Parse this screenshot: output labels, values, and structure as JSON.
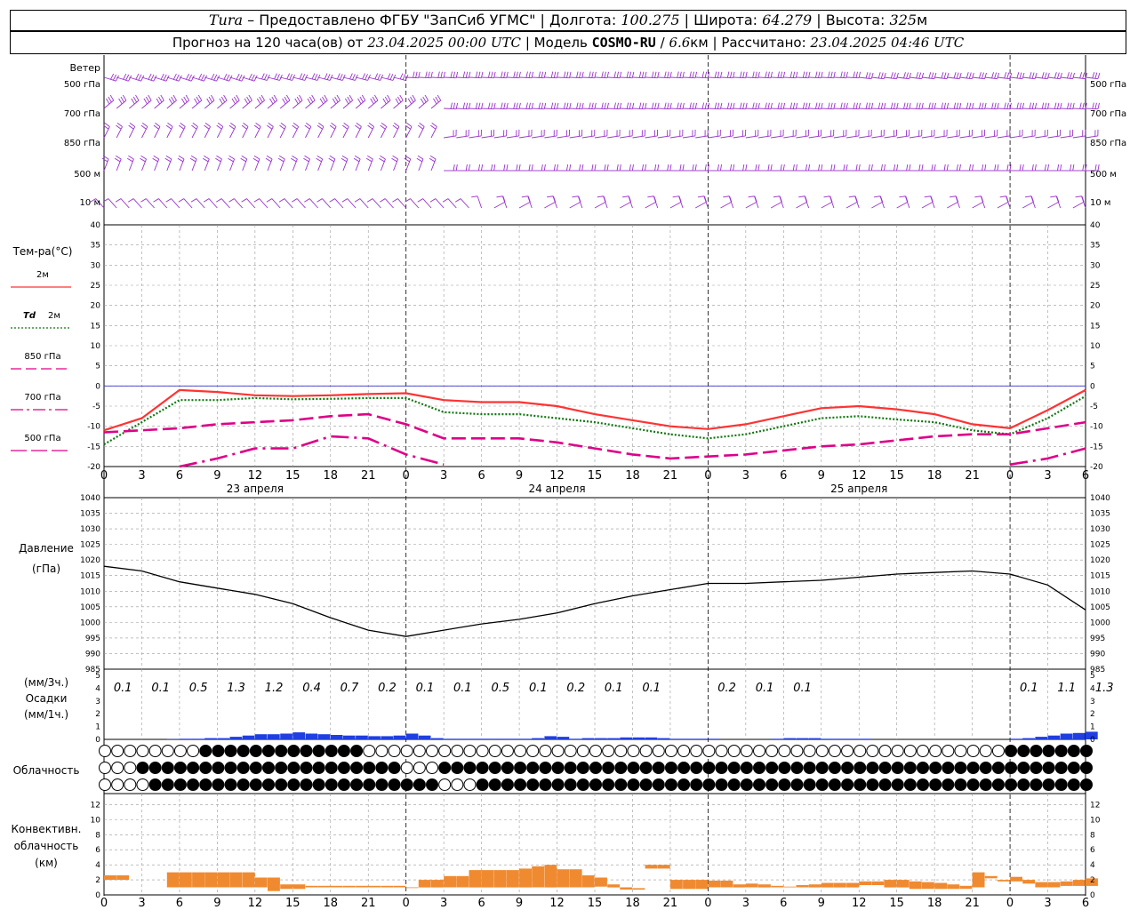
{
  "header": {
    "station": "Tura",
    "dash": " – ",
    "provider": "Предоставлено ФГБУ \"ЗапСиб УГМС\"",
    "lon_label": "Долгота:",
    "lon_value": "100.275",
    "lat_label": "Широта:",
    "lat_value": "64.279",
    "alt_label": "Высота:",
    "alt_value": "325",
    "alt_unit": "м",
    "forecast_prefix": "Прогноз на 120 часа(ов) от",
    "forecast_start": "23.04.2025 00:00 UTC",
    "model_label": "Модель",
    "model_name": "COSMO-RU",
    "model_res": "6.6",
    "model_res_unit": "км",
    "computed_label": "Рассчитано:",
    "computed_time": "23.04.2025 04:46 UTC",
    "sep": "|"
  },
  "wind_panel": {
    "title": "Ветер",
    "levels": [
      "500 гПа",
      "700 гПа",
      "850 гПа",
      "500 м",
      "10 м"
    ],
    "barb_color": "#9933cc"
  },
  "temp_panel": {
    "title": "Тем-ра(°C)",
    "legend": [
      {
        "name": "2м",
        "color": "#ff3333",
        "style": "solid"
      },
      {
        "name": "2м",
        "prefix": "Td",
        "color": "#117711",
        "style": "dotted"
      },
      {
        "name": "850 гПа",
        "color": "#dd0088",
        "style": "dashed"
      },
      {
        "name": "700 гПа",
        "color": "#dd0088",
        "style": "dashdot"
      },
      {
        "name": "500 гПа",
        "color": "#dd0088",
        "style": "longdash"
      }
    ],
    "y_ticks": [
      40,
      35,
      30,
      25,
      20,
      15,
      10,
      5,
      0,
      -5,
      -10,
      -15,
      -20
    ],
    "zero_line_color": "#3333cc"
  },
  "x_axis": {
    "hour_ticks": [
      "0",
      "3",
      "6",
      "9",
      "12",
      "15",
      "18",
      "21",
      "0",
      "3",
      "6",
      "9",
      "12",
      "15",
      "18",
      "21",
      "0",
      "3",
      "6",
      "9",
      "12",
      "15",
      "18",
      "21",
      "0",
      "3",
      "6"
    ],
    "dates": [
      "23 апреля",
      "24 апреля",
      "25 апреля"
    ]
  },
  "pressure_panel": {
    "title": "Давление",
    "unit": "(гПа)",
    "y_ticks": [
      1040,
      1035,
      1030,
      1025,
      1020,
      1015,
      1010,
      1005,
      1000,
      995,
      990,
      985
    ]
  },
  "precip_panel": {
    "unit_3h": "(мм/3ч.)",
    "title": "Осадки",
    "unit_1h": "(мм/1ч.)",
    "y_ticks": [
      5,
      4,
      3,
      2,
      1,
      0
    ],
    "totals_3h": [
      "0.1",
      "0.1",
      "0.5",
      "1.3",
      "1.2",
      "0.4",
      "0.7",
      "0.2",
      "0.1",
      "0.1",
      "0.5",
      "0.1",
      "0.2",
      "0.1",
      "0.1",
      "",
      "0.2",
      "0.1",
      "0.1",
      "",
      "",
      "",
      "",
      "",
      "0.1",
      "1.1",
      "1.3"
    ],
    "bar_color": "#1f3fe0"
  },
  "cloud_panel": {
    "title": "Облачность"
  },
  "conv_panel": {
    "title_lines": [
      "Конвективн.",
      "облачность",
      "(км)"
    ],
    "y_ticks": [
      12,
      10,
      8,
      6,
      4,
      2,
      0
    ],
    "bar_color": "#f08a30"
  },
  "chart_data": [
    {
      "type": "line",
      "title": "Тем-ра(°C)",
      "ylim": [
        -20,
        40
      ],
      "x_hours": [
        0,
        3,
        6,
        9,
        12,
        15,
        18,
        21,
        24,
        27,
        30,
        33,
        36,
        39,
        42,
        45,
        48,
        51,
        54,
        57,
        60,
        63,
        66,
        69,
        72,
        75,
        78
      ],
      "series": [
        {
          "name": "2м",
          "values": [
            -11,
            -8,
            -1,
            -1.5,
            -2.3,
            -2.5,
            -2.3,
            -2,
            -1.8,
            -3.5,
            -4,
            -4,
            -5,
            -7,
            -8.5,
            -10,
            -10.7,
            -9.5,
            -7.5,
            -5.5,
            -5,
            -5.8,
            -7,
            -9.5,
            -10.5,
            -6,
            -1
          ]
        },
        {
          "name": "Td 2м",
          "values": [
            -14.5,
            -9,
            -3.5,
            -3.5,
            -3,
            -3.3,
            -3.2,
            -3,
            -3,
            -6.5,
            -7,
            -7,
            -8,
            -9,
            -10.5,
            -12,
            -13,
            -12,
            -10,
            -8,
            -7.5,
            -8.3,
            -9,
            -11,
            -12,
            -8,
            -2.5
          ]
        },
        {
          "name": "850 гПа",
          "values": [
            -11.5,
            -11,
            -10.5,
            -9.5,
            -9,
            -8.5,
            -7.5,
            -7,
            -9.5,
            -13,
            -13,
            -13,
            -14,
            -15.5,
            -17,
            -18,
            -17.5,
            -17,
            -16,
            -15,
            -14.5,
            -13.5,
            -12.5,
            -12,
            -12,
            -10.5,
            -9
          ]
        },
        {
          "name": "700 гПа",
          "values": [
            null,
            null,
            -20.5,
            -18,
            -15.5,
            -15.5,
            -12.5,
            -13,
            -17,
            -19.5,
            null,
            null,
            null,
            null,
            null,
            null,
            null,
            null,
            null,
            null,
            null,
            null,
            null,
            null,
            -19.5,
            -18,
            -15.5
          ]
        }
      ]
    },
    {
      "type": "line",
      "title": "Давление",
      "ylim": [
        985,
        1040
      ],
      "x_hours": [
        0,
        3,
        6,
        9,
        12,
        15,
        18,
        21,
        24,
        27,
        30,
        33,
        36,
        39,
        42,
        45,
        48,
        51,
        54,
        57,
        60,
        63,
        66,
        69,
        72,
        75,
        78
      ],
      "series": [
        {
          "name": "Давление",
          "values": [
            1018,
            1016.5,
            1013,
            1011,
            1009,
            1006,
            1001.5,
            997.5,
            995.5,
            997.5,
            999.5,
            1001,
            1003,
            1006,
            1008.5,
            1010.5,
            1012.5,
            1012.5,
            1013,
            1013.5,
            1014.5,
            1015.5,
            1016,
            1016.5,
            1015.5,
            1012,
            1004
          ]
        }
      ]
    },
    {
      "type": "bar",
      "title": "Осадки",
      "ylim": [
        0,
        5
      ],
      "x_hours_1h": [
        0,
        1,
        2,
        3,
        4,
        5,
        6,
        7,
        8,
        9,
        10,
        11,
        12,
        13,
        14,
        15,
        16,
        17,
        18,
        19,
        20,
        21,
        22,
        23,
        24,
        25,
        26,
        27,
        28,
        29,
        30,
        31,
        32,
        33,
        34,
        35,
        36,
        37,
        38,
        39,
        40,
        41,
        42,
        43,
        44,
        45,
        46,
        47,
        48,
        49,
        50,
        51,
        52,
        53,
        54,
        55,
        56,
        57,
        58,
        59,
        60,
        61,
        62,
        63,
        64,
        65,
        66,
        67,
        68,
        69,
        70,
        71,
        72,
        73,
        74,
        75,
        76,
        77,
        78
      ],
      "values": [
        0,
        0,
        0,
        0,
        0,
        0.02,
        0.05,
        0.05,
        0.1,
        0.1,
        0.2,
        0.3,
        0.4,
        0.4,
        0.45,
        0.55,
        0.45,
        0.4,
        0.35,
        0.3,
        0.3,
        0.25,
        0.25,
        0.3,
        0.45,
        0.3,
        0.1,
        0.05,
        0.05,
        0.05,
        0.05,
        0.05,
        0.05,
        0.05,
        0.1,
        0.25,
        0.2,
        0.05,
        0.1,
        0.1,
        0.1,
        0.15,
        0.15,
        0.15,
        0.1,
        0.05,
        0.05,
        0.05,
        0.05,
        0,
        0,
        0,
        0,
        0.05,
        0.1,
        0.1,
        0.1,
        0.05,
        0.05,
        0.05,
        0.05,
        0,
        0,
        0,
        0,
        0,
        0,
        0,
        0,
        0,
        0,
        0,
        0.05,
        0.1,
        0.2,
        0.3,
        0.45,
        0.5,
        0.6
      ]
    },
    {
      "type": "bar",
      "title": "Конвективн. облачность (км)",
      "ylim": [
        0,
        13
      ],
      "x_hours_1h": [
        0,
        1,
        2,
        3,
        4,
        5,
        6,
        7,
        8,
        9,
        10,
        11,
        12,
        13,
        14,
        15,
        16,
        17,
        18,
        19,
        20,
        21,
        22,
        23,
        24,
        25,
        26,
        27,
        28,
        29,
        30,
        31,
        32,
        33,
        34,
        35,
        36,
        37,
        38,
        39,
        40,
        41,
        42,
        43,
        44,
        45,
        46,
        47,
        48,
        49,
        50,
        51,
        52,
        53,
        54,
        55,
        56,
        57,
        58,
        59,
        60,
        61,
        62,
        63,
        64,
        65,
        66,
        67,
        68,
        69,
        70,
        71,
        72,
        73,
        74,
        75,
        76,
        77,
        78
      ],
      "tops": [
        2.6,
        2.6,
        0,
        0,
        0,
        3,
        3,
        3,
        3,
        3,
        3,
        3,
        2.3,
        2.3,
        1.4,
        1.4,
        1.2,
        1.2,
        1.2,
        1.2,
        1.2,
        1.2,
        1.2,
        1.2,
        1,
        2,
        2,
        2.5,
        2.5,
        3.3,
        3.3,
        3.3,
        3.3,
        3.5,
        3.8,
        4,
        3.4,
        3.4,
        2.6,
        2.3,
        1.4,
        1,
        0.9,
        4,
        4,
        2,
        2,
        2,
        1.9,
        1.9,
        1.4,
        1.5,
        1.4,
        1.2,
        1.1,
        1.3,
        1.4,
        1.6,
        1.6,
        1.6,
        1.8,
        1.8,
        2,
        2,
        1.8,
        1.7,
        1.6,
        1.4,
        1.2,
        3,
        2.5,
        2,
        2.4,
        2,
        1.7,
        1.7,
        1.8,
        2,
        2.2
      ],
      "bottoms": [
        2,
        2,
        0,
        0,
        0,
        1,
        1,
        1,
        1,
        1,
        1,
        1,
        1,
        0.5,
        0.8,
        0.8,
        1,
        1,
        1,
        1,
        1,
        1,
        1,
        1,
        0.9,
        1,
        1,
        1,
        1,
        1,
        1,
        1,
        1,
        1,
        1,
        1,
        1,
        1,
        1,
        1.1,
        1,
        0.7,
        0.7,
        3.5,
        3.5,
        0.8,
        0.8,
        0.8,
        1,
        1,
        1,
        1,
        1,
        1,
        1,
        1,
        1,
        1,
        1,
        1,
        1.3,
        1.3,
        1,
        1,
        0.8,
        0.8,
        0.8,
        0.8,
        0.8,
        1,
        2.2,
        1.8,
        1.8,
        1.5,
        1,
        1,
        1.2,
        1.2,
        1.2
      ]
    }
  ]
}
